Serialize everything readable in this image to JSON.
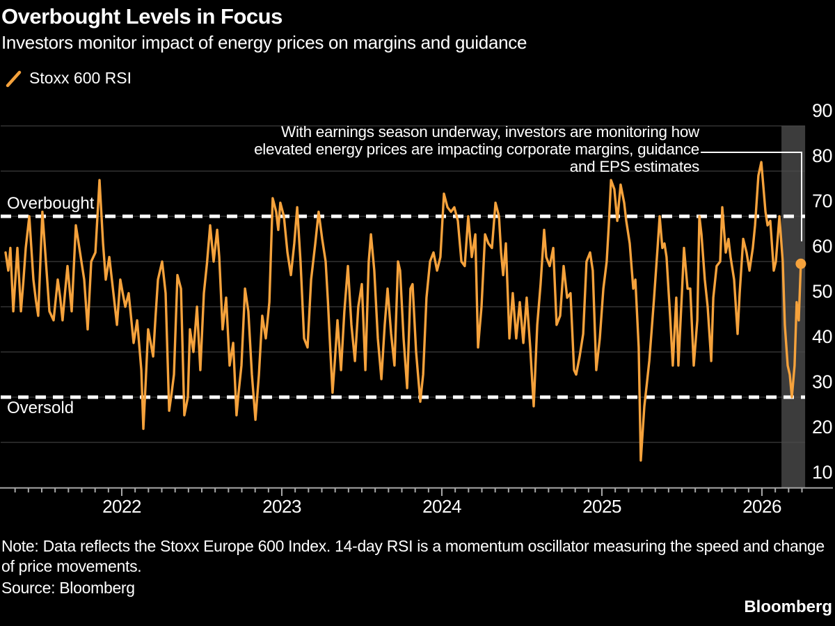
{
  "header": {
    "title": "Overbought Levels in Focus",
    "subtitle": "Investors monitor impact of energy prices on margins and guidance"
  },
  "legend": {
    "label": "Stoxx 600 RSI",
    "marker_color": "#F5A23C"
  },
  "annotation": {
    "lines": [
      "With earnings season underway, investors are monitoring how",
      "elevated energy prices are impacting corporate margins, guidance",
      "and EPS estimates"
    ]
  },
  "chart_labels": {
    "overbought": "Overbought",
    "oversold": "Oversold"
  },
  "footer": {
    "note": "Note: Data reflects the Stoxx Europe 600 Index. 14-day RSI is a momentum oscillator measuring the speed and change of price movements.",
    "source": "Source: Bloomberg",
    "brand": "Bloomberg"
  },
  "chart_data": {
    "type": "line",
    "title": "Overbought Levels in Focus",
    "xlabel": "",
    "ylabel": "RSI",
    "x_range": [
      2021.27,
      2026.27
    ],
    "y_range": [
      10,
      90
    ],
    "grid": true,
    "legend_position": "top-left",
    "y_ticks": [
      10,
      20,
      30,
      40,
      50,
      60,
      70,
      80,
      90
    ],
    "x_ticks": [
      {
        "t": 2022,
        "label": "2022"
      },
      {
        "t": 2023,
        "label": "2023"
      },
      {
        "t": 2024,
        "label": "2024"
      },
      {
        "t": 2025,
        "label": "2025"
      },
      {
        "t": 2026,
        "label": "2026"
      }
    ],
    "thresholds": {
      "overbought": 70,
      "oversold": 30
    },
    "threshold_line_color": "#FFFFFF",
    "highlight_region": {
      "t_start": 2026.122,
      "t_end": 2026.27,
      "color": "#3C3C3C"
    },
    "colors": {
      "grid": "#4D4D4D",
      "axis": "#A8A8A8",
      "background": "#000000"
    },
    "end_dot": true,
    "series": [
      {
        "name": "Stoxx 600 RSI",
        "color": "#F5A23C",
        "points": [
          [
            2021.274,
            62
          ],
          [
            2021.291,
            58
          ],
          [
            2021.304,
            63
          ],
          [
            2021.322,
            49
          ],
          [
            2021.348,
            63
          ],
          [
            2021.37,
            49
          ],
          [
            2021.4,
            63
          ],
          [
            2021.422,
            70
          ],
          [
            2021.448,
            56
          ],
          [
            2021.478,
            48
          ],
          [
            2021.504,
            71
          ],
          [
            2021.53,
            58
          ],
          [
            2021.548,
            49
          ],
          [
            2021.574,
            47
          ],
          [
            2021.6,
            56
          ],
          [
            2021.63,
            47
          ],
          [
            2021.661,
            59
          ],
          [
            2021.687,
            49
          ],
          [
            2021.713,
            68
          ],
          [
            2021.748,
            60
          ],
          [
            2021.765,
            56
          ],
          [
            2021.787,
            45
          ],
          [
            2021.809,
            60
          ],
          [
            2021.835,
            62
          ],
          [
            2021.861,
            78
          ],
          [
            2021.883,
            64
          ],
          [
            2021.9,
            56
          ],
          [
            2021.922,
            61
          ],
          [
            2021.948,
            53
          ],
          [
            2021.97,
            46
          ],
          [
            2021.991,
            56
          ],
          [
            2022.022,
            50
          ],
          [
            2022.043,
            53
          ],
          [
            2022.074,
            42
          ],
          [
            2022.096,
            47
          ],
          [
            2022.122,
            36
          ],
          [
            2022.135,
            23
          ],
          [
            2022.165,
            45
          ],
          [
            2022.196,
            39
          ],
          [
            2022.226,
            56
          ],
          [
            2022.252,
            60
          ],
          [
            2022.274,
            53
          ],
          [
            2022.296,
            27
          ],
          [
            2022.326,
            35
          ],
          [
            2022.348,
            57
          ],
          [
            2022.37,
            54
          ],
          [
            2022.391,
            26
          ],
          [
            2022.413,
            30
          ],
          [
            2022.426,
            45
          ],
          [
            2022.448,
            40
          ],
          [
            2022.47,
            50
          ],
          [
            2022.491,
            36
          ],
          [
            2022.513,
            53
          ],
          [
            2022.552,
            68
          ],
          [
            2022.574,
            60
          ],
          [
            2022.596,
            67
          ],
          [
            2022.609,
            61
          ],
          [
            2022.63,
            45
          ],
          [
            2022.652,
            52
          ],
          [
            2022.674,
            37
          ],
          [
            2022.696,
            42
          ],
          [
            2022.717,
            26
          ],
          [
            2022.73,
            31
          ],
          [
            2022.748,
            37
          ],
          [
            2022.77,
            54
          ],
          [
            2022.791,
            49
          ],
          [
            2022.813,
            35
          ],
          [
            2022.835,
            25
          ],
          [
            2022.857,
            35
          ],
          [
            2022.878,
            48
          ],
          [
            2022.9,
            43
          ],
          [
            2022.922,
            51
          ],
          [
            2022.943,
            74
          ],
          [
            2022.965,
            71
          ],
          [
            2022.978,
            67
          ],
          [
            2022.991,
            73
          ],
          [
            2023.013,
            70
          ],
          [
            2023.035,
            62
          ],
          [
            2023.057,
            57
          ],
          [
            2023.078,
            64
          ],
          [
            2023.096,
            72
          ],
          [
            2023.117,
            60
          ],
          [
            2023.139,
            43
          ],
          [
            2023.161,
            41
          ],
          [
            2023.183,
            56
          ],
          [
            2023.209,
            64
          ],
          [
            2023.23,
            71
          ],
          [
            2023.252,
            65
          ],
          [
            2023.274,
            60
          ],
          [
            2023.317,
            31
          ],
          [
            2023.348,
            47
          ],
          [
            2023.37,
            36
          ],
          [
            2023.391,
            49
          ],
          [
            2023.413,
            59
          ],
          [
            2023.435,
            46
          ],
          [
            2023.457,
            38
          ],
          [
            2023.478,
            50
          ],
          [
            2023.5,
            55
          ],
          [
            2023.522,
            36
          ],
          [
            2023.543,
            60
          ],
          [
            2023.557,
            66
          ],
          [
            2023.578,
            58
          ],
          [
            2023.6,
            43
          ],
          [
            2023.622,
            34
          ],
          [
            2023.643,
            46
          ],
          [
            2023.661,
            54
          ],
          [
            2023.683,
            44
          ],
          [
            2023.704,
            37
          ],
          [
            2023.726,
            60
          ],
          [
            2023.739,
            58
          ],
          [
            2023.761,
            43
          ],
          [
            2023.783,
            32
          ],
          [
            2023.804,
            54
          ],
          [
            2023.817,
            55
          ],
          [
            2023.839,
            40
          ],
          [
            2023.865,
            29
          ],
          [
            2023.883,
            35
          ],
          [
            2023.904,
            52
          ],
          [
            2023.926,
            60
          ],
          [
            2023.948,
            62
          ],
          [
            2023.97,
            58
          ],
          [
            2023.991,
            61
          ],
          [
            2024.013,
            75
          ],
          [
            2024.035,
            72
          ],
          [
            2024.057,
            71
          ],
          [
            2024.078,
            72
          ],
          [
            2024.1,
            69
          ],
          [
            2024.122,
            60
          ],
          [
            2024.143,
            59
          ],
          [
            2024.165,
            70
          ],
          [
            2024.187,
            61
          ],
          [
            2024.209,
            66
          ],
          [
            2024.226,
            41
          ],
          [
            2024.248,
            50
          ],
          [
            2024.27,
            66
          ],
          [
            2024.291,
            64
          ],
          [
            2024.313,
            63
          ],
          [
            2024.335,
            73
          ],
          [
            2024.357,
            70
          ],
          [
            2024.37,
            62
          ],
          [
            2024.383,
            57
          ],
          [
            2024.4,
            64
          ],
          [
            2024.422,
            43
          ],
          [
            2024.443,
            53
          ],
          [
            2024.465,
            43
          ],
          [
            2024.487,
            51
          ],
          [
            2024.509,
            42
          ],
          [
            2024.53,
            52
          ],
          [
            2024.552,
            41
          ],
          [
            2024.574,
            28
          ],
          [
            2024.596,
            46
          ],
          [
            2024.617,
            55
          ],
          [
            2024.639,
            67
          ],
          [
            2024.652,
            61
          ],
          [
            2024.674,
            59
          ],
          [
            2024.696,
            63
          ],
          [
            2024.717,
            46
          ],
          [
            2024.739,
            48
          ],
          [
            2024.761,
            59
          ],
          [
            2024.783,
            52
          ],
          [
            2024.804,
            53
          ],
          [
            2024.826,
            36
          ],
          [
            2024.839,
            35
          ],
          [
            2024.861,
            39
          ],
          [
            2024.883,
            44
          ],
          [
            2024.904,
            60
          ],
          [
            2024.926,
            62
          ],
          [
            2024.943,
            58
          ],
          [
            2024.965,
            36
          ],
          [
            2024.987,
            43
          ],
          [
            2025.009,
            54
          ],
          [
            2025.03,
            60
          ],
          [
            2025.043,
            68
          ],
          [
            2025.057,
            78
          ],
          [
            2025.078,
            76
          ],
          [
            2025.096,
            69
          ],
          [
            2025.117,
            77
          ],
          [
            2025.139,
            73
          ],
          [
            2025.152,
            69
          ],
          [
            2025.174,
            64
          ],
          [
            2025.196,
            54
          ],
          [
            2025.209,
            56
          ],
          [
            2025.23,
            41
          ],
          [
            2025.243,
            16
          ],
          [
            2025.265,
            28
          ],
          [
            2025.296,
            38
          ],
          [
            2025.326,
            52
          ],
          [
            2025.348,
            63
          ],
          [
            2025.361,
            70
          ],
          [
            2025.378,
            63
          ],
          [
            2025.391,
            64
          ],
          [
            2025.404,
            61
          ],
          [
            2025.426,
            48
          ],
          [
            2025.443,
            37
          ],
          [
            2025.465,
            52
          ],
          [
            2025.478,
            37
          ],
          [
            2025.5,
            53
          ],
          [
            2025.513,
            63
          ],
          [
            2025.535,
            54
          ],
          [
            2025.552,
            54
          ],
          [
            2025.574,
            37
          ],
          [
            2025.596,
            47
          ],
          [
            2025.609,
            70
          ],
          [
            2025.622,
            66
          ],
          [
            2025.643,
            56
          ],
          [
            2025.661,
            50
          ],
          [
            2025.683,
            38
          ],
          [
            2025.696,
            52
          ],
          [
            2025.717,
            59
          ],
          [
            2025.739,
            60
          ],
          [
            2025.752,
            72
          ],
          [
            2025.774,
            62
          ],
          [
            2025.791,
            65
          ],
          [
            2025.804,
            61
          ],
          [
            2025.826,
            56
          ],
          [
            2025.848,
            44
          ],
          [
            2025.861,
            53
          ],
          [
            2025.883,
            65
          ],
          [
            2025.904,
            62
          ],
          [
            2025.922,
            58
          ],
          [
            2025.943,
            63
          ],
          [
            2025.957,
            68
          ],
          [
            2025.978,
            79
          ],
          [
            2025.996,
            82
          ],
          [
            2026.022,
            71
          ],
          [
            2026.035,
            68
          ],
          [
            2026.052,
            69
          ],
          [
            2026.074,
            58
          ],
          [
            2026.087,
            60
          ],
          [
            2026.109,
            70
          ],
          [
            2026.13,
            60
          ],
          [
            2026.143,
            46
          ],
          [
            2026.161,
            37
          ],
          [
            2026.174,
            35
          ],
          [
            2026.187,
            30
          ],
          [
            2026.204,
            37
          ],
          [
            2026.217,
            51
          ],
          [
            2026.23,
            47
          ],
          [
            2026.243,
            59.5
          ]
        ]
      }
    ]
  }
}
